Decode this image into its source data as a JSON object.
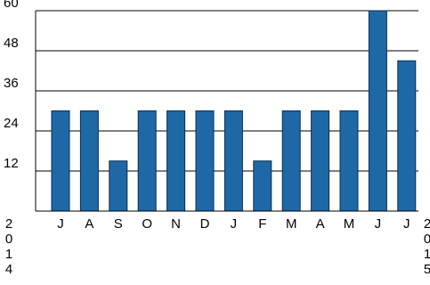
{
  "chart_data": {
    "type": "bar",
    "title": "",
    "xlabel": "",
    "ylabel": "",
    "categories": [
      "J",
      "A",
      "S",
      "O",
      "N",
      "D",
      "J",
      "F",
      "M",
      "A",
      "M",
      "J",
      "J"
    ],
    "values": [
      30,
      30,
      15,
      30,
      30,
      30,
      30,
      15,
      30,
      30,
      30,
      60,
      45
    ],
    "ylim": [
      0,
      60
    ],
    "yticks": [
      12,
      24,
      36,
      48,
      60
    ],
    "year_labels": {
      "start": [
        "2",
        "0",
        "1",
        "4"
      ],
      "end": [
        "2",
        "0",
        "1",
        "5"
      ]
    },
    "grid": "horizontal",
    "legend": "none",
    "colors": {
      "bar_fill": "#1f68a6",
      "bar_stroke": "#0b2d4d",
      "grid": "#000000",
      "axis": "#000000",
      "text": "#000000"
    }
  }
}
